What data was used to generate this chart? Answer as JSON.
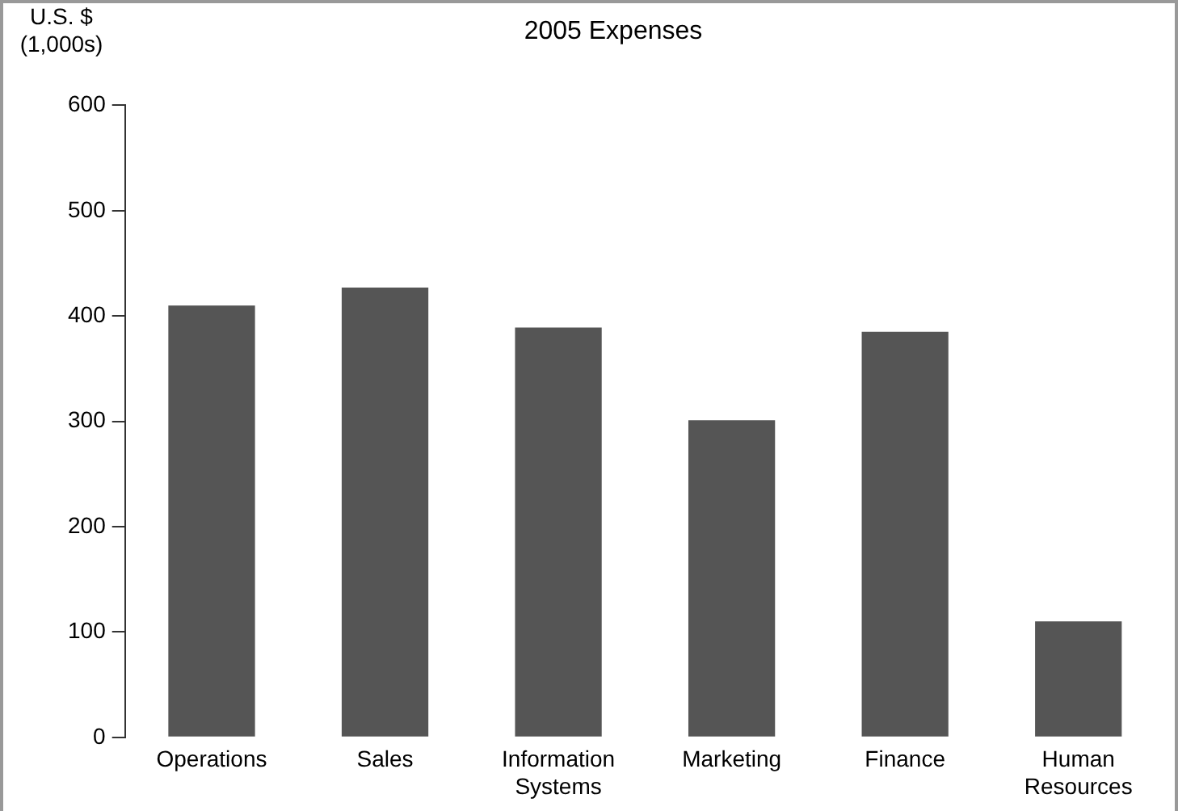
{
  "chart_data": {
    "type": "bar",
    "title": "2005 Expenses",
    "ylabel": "U.S. $ (1,000s)",
    "categories": [
      "Operations",
      "Sales",
      "Information Systems",
      "Marketing",
      "Finance",
      "Human Resources"
    ],
    "values": [
      410,
      427,
      389,
      301,
      385,
      110
    ],
    "color": "#555555",
    "ylim": [
      0,
      600
    ],
    "yticks": [
      0,
      100,
      200,
      300,
      400,
      500,
      600
    ],
    "grid": false,
    "legend": false
  }
}
